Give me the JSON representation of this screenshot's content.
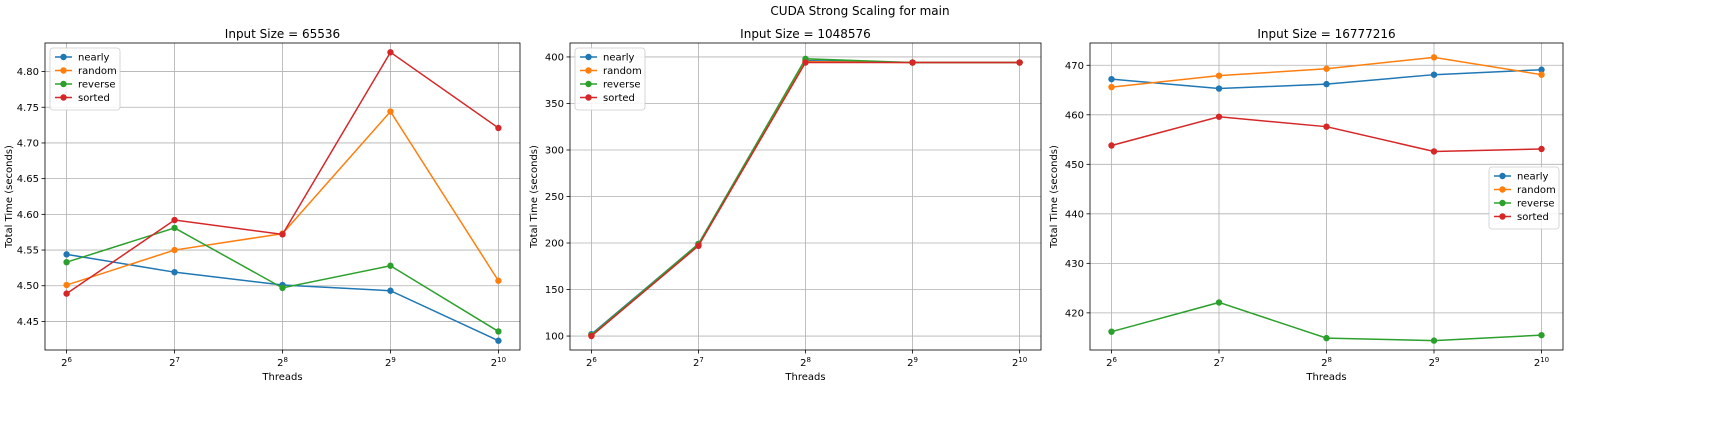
{
  "figure": {
    "title": "CUDA Strong Scaling for main"
  },
  "chart_data": [
    {
      "type": "line",
      "title": "Input Size = 65536",
      "xlabel": "Threads",
      "ylabel": "Total Time (seconds)",
      "x": [
        64,
        128,
        256,
        512,
        1024
      ],
      "x_tick_labels": [
        {
          "base": "2",
          "exp": "6"
        },
        {
          "base": "2",
          "exp": "7"
        },
        {
          "base": "2",
          "exp": "8"
        },
        {
          "base": "2",
          "exp": "9"
        },
        {
          "base": "2",
          "exp": "10"
        }
      ],
      "x_scale": "log2",
      "ylim": [
        4.41,
        4.84
      ],
      "yticks": [
        "4.45",
        "4.50",
        "4.55",
        "4.60",
        "4.65",
        "4.70",
        "4.75",
        "4.80"
      ],
      "grid": true,
      "legend_position": "upper-left",
      "series": [
        {
          "name": "nearly",
          "color": "#1f77b4",
          "values": [
            4.544,
            4.519,
            4.501,
            4.493,
            4.423
          ]
        },
        {
          "name": "random",
          "color": "#ff7f0e",
          "values": [
            4.501,
            4.55,
            4.573,
            4.744,
            4.507
          ]
        },
        {
          "name": "reverse",
          "color": "#2ca02c",
          "values": [
            4.533,
            4.581,
            4.497,
            4.528,
            4.436
          ]
        },
        {
          "name": "sorted",
          "color": "#d62728",
          "values": [
            4.489,
            4.592,
            4.572,
            4.827,
            4.721
          ]
        }
      ]
    },
    {
      "type": "line",
      "title": "Input Size = 1048576",
      "xlabel": "Threads",
      "ylabel": "Total Time (seconds)",
      "x": [
        64,
        128,
        256,
        512,
        1024
      ],
      "x_tick_labels": [
        {
          "base": "2",
          "exp": "6"
        },
        {
          "base": "2",
          "exp": "7"
        },
        {
          "base": "2",
          "exp": "8"
        },
        {
          "base": "2",
          "exp": "9"
        },
        {
          "base": "2",
          "exp": "10"
        }
      ],
      "x_scale": "log2",
      "ylim": [
        85,
        415
      ],
      "yticks": [
        "100",
        "150",
        "200",
        "250",
        "300",
        "350",
        "400"
      ],
      "grid": true,
      "legend_position": "upper-left",
      "series": [
        {
          "name": "nearly",
          "color": "#1f77b4",
          "values": [
            102,
            199,
            396,
            394,
            394
          ]
        },
        {
          "name": "random",
          "color": "#ff7f0e",
          "values": [
            101,
            198,
            395,
            394,
            394
          ]
        },
        {
          "name": "reverse",
          "color": "#2ca02c",
          "values": [
            101,
            199,
            398,
            394,
            394
          ]
        },
        {
          "name": "sorted",
          "color": "#d62728",
          "values": [
            100,
            197,
            394,
            394,
            394
          ]
        }
      ]
    },
    {
      "type": "line",
      "title": "Input Size = 16777216",
      "xlabel": "Threads",
      "ylabel": "Total Time (seconds)",
      "x": [
        64,
        128,
        256,
        512,
        1024
      ],
      "x_tick_labels": [
        {
          "base": "2",
          "exp": "6"
        },
        {
          "base": "2",
          "exp": "7"
        },
        {
          "base": "2",
          "exp": "8"
        },
        {
          "base": "2",
          "exp": "9"
        },
        {
          "base": "2",
          "exp": "10"
        }
      ],
      "x_scale": "log2",
      "ylim": [
        412.5,
        474.5
      ],
      "yticks": [
        "420",
        "430",
        "440",
        "450",
        "460",
        "470"
      ],
      "grid": true,
      "legend_position": "center-right",
      "series": [
        {
          "name": "nearly",
          "color": "#1f77b4",
          "values": [
            467.2,
            465.3,
            466.2,
            468.1,
            469.1
          ]
        },
        {
          "name": "random",
          "color": "#ff7f0e",
          "values": [
            465.6,
            467.9,
            469.3,
            471.6,
            468.1
          ]
        },
        {
          "name": "reverse",
          "color": "#2ca02c",
          "values": [
            416.2,
            422.1,
            414.9,
            414.4,
            415.5
          ]
        },
        {
          "name": "sorted",
          "color": "#d62728",
          "values": [
            453.8,
            459.6,
            457.6,
            452.6,
            453.1
          ]
        }
      ]
    }
  ]
}
